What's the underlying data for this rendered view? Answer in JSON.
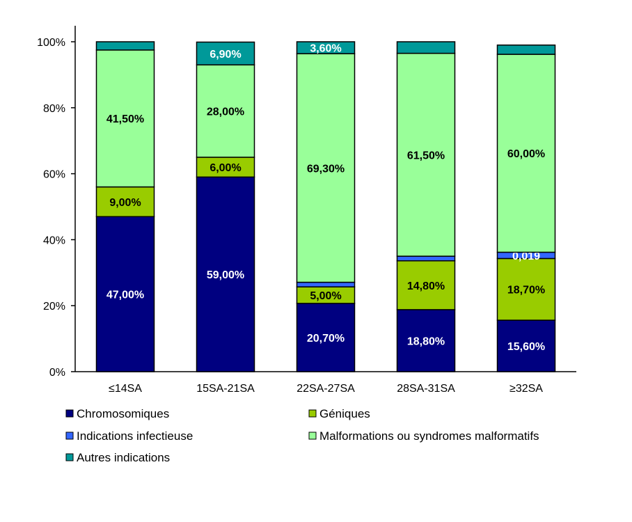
{
  "chart_data": {
    "type": "bar",
    "stacked": true,
    "categories": [
      "≤14SA",
      "15SA-21SA",
      "22SA-27SA",
      "28SA-31SA",
      "≥32SA"
    ],
    "y_ticks": [
      "0%",
      "20%",
      "40%",
      "60%",
      "80%",
      "100%"
    ],
    "ylim": [
      0,
      100
    ],
    "series": [
      {
        "name": "Chromosomiques",
        "color": "#000080",
        "values": [
          47.0,
          59.0,
          20.7,
          18.8,
          15.6
        ],
        "labels": [
          "47,00%",
          "59,00%",
          "20,70%",
          "18,80%",
          "15,60%"
        ]
      },
      {
        "name": "Géniques",
        "color": "#99cc00",
        "values": [
          9.0,
          6.0,
          5.0,
          14.8,
          18.7
        ],
        "labels": [
          "9,00%",
          "6,00%",
          "5,00%",
          "14,80%",
          "18,70%"
        ]
      },
      {
        "name": "Indications infectieuse",
        "color": "#3366ff",
        "values": [
          0.0,
          0.0,
          1.4,
          1.4,
          1.9
        ],
        "labels": [
          "",
          "",
          "",
          "",
          "0,019"
        ]
      },
      {
        "name": "Malformations ou syndromes malformatifs",
        "color": "#99ff99",
        "values": [
          41.5,
          28.0,
          69.3,
          61.5,
          60.0
        ],
        "labels": [
          "41,50%",
          "28,00%",
          "69,30%",
          "61,50%",
          "60,00%"
        ]
      },
      {
        "name": "Autres indications",
        "color": "#009999",
        "values": [
          2.5,
          6.9,
          3.6,
          3.5,
          2.8
        ],
        "labels": [
          "",
          "6,90%",
          "3,60%",
          "",
          ""
        ]
      }
    ],
    "label_colors": [
      "#ffffff",
      "#000000",
      "#ffffff",
      "#000000",
      "#ffffff"
    ],
    "legend_position": "bottom",
    "grid": false
  }
}
